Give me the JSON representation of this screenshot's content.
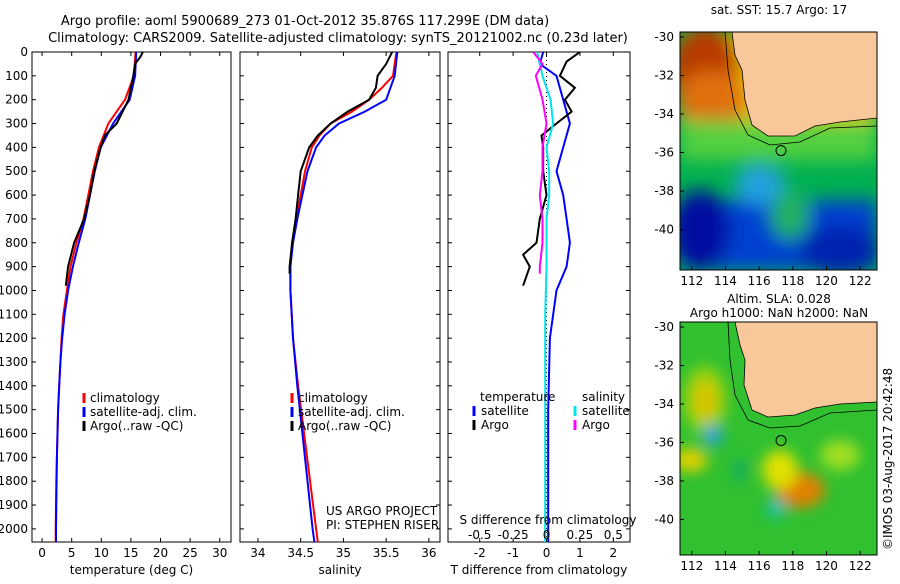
{
  "title": {
    "line1": "Argo profile: aoml 5900689_273 01-Oct-2012 35.876S 117.299E (DM data)",
    "line2": "Climatology: CARS2009. Satellite-adjusted climatology: synTS_20121002.nc (0.23d later)"
  },
  "colors": {
    "climatology": "#ff0000",
    "satellite": "#0000ff",
    "argo": "#000000",
    "sal_satellite": "#00e5ee",
    "sal_argo": "#ff00ff",
    "land": "#f9c89a"
  },
  "chart_data": [
    {
      "type": "line",
      "id": "temperature",
      "xlabel": "temperature (deg C)",
      "ylabel": "",
      "xlim": [
        -1.7,
        31.9
      ],
      "ylim": [
        2055,
        0
      ],
      "xticks": [
        0,
        5,
        10,
        15,
        20,
        25,
        30
      ],
      "yticks": [
        0,
        100,
        200,
        300,
        400,
        500,
        600,
        700,
        800,
        900,
        1000,
        1100,
        1200,
        1300,
        1400,
        1500,
        1600,
        1700,
        1800,
        1900,
        2000
      ],
      "legend": {
        "position": "bottom-center",
        "entries": [
          "climatology",
          "satellite-adj. clim.",
          "Argo(..raw -QC)"
        ]
      },
      "series": [
        {
          "name": "climatology",
          "color": "#ff0000",
          "points": [
            [
              15.8,
              0
            ],
            [
              15.5,
              100
            ],
            [
              14,
              200
            ],
            [
              11.2,
              300
            ],
            [
              9.6,
              400
            ],
            [
              8.6,
              500
            ],
            [
              7.8,
              600
            ],
            [
              7,
              700
            ],
            [
              5.8,
              800
            ],
            [
              4.8,
              900
            ],
            [
              4.2,
              1000
            ],
            [
              3.6,
              1100
            ],
            [
              3.3,
              1200
            ],
            [
              3.1,
              1300
            ],
            [
              2.9,
              1400
            ],
            [
              2.7,
              1500
            ],
            [
              2.6,
              1600
            ],
            [
              2.5,
              1700
            ],
            [
              2.4,
              1800
            ],
            [
              2.35,
              1900
            ],
            [
              2.3,
              2000
            ],
            [
              2.3,
              2055
            ]
          ]
        },
        {
          "name": "satellite-adj. clim.",
          "color": "#0000ff",
          "points": [
            [
              15.9,
              0
            ],
            [
              15.7,
              100
            ],
            [
              14.8,
              200
            ],
            [
              12,
              300
            ],
            [
              9.9,
              400
            ],
            [
              8.9,
              500
            ],
            [
              8.1,
              600
            ],
            [
              7.3,
              700
            ],
            [
              6.2,
              800
            ],
            [
              5.2,
              900
            ],
            [
              4.4,
              1000
            ],
            [
              3.8,
              1100
            ],
            [
              3.4,
              1200
            ],
            [
              3.1,
              1300
            ],
            [
              2.9,
              1400
            ],
            [
              2.7,
              1500
            ],
            [
              2.6,
              1600
            ],
            [
              2.5,
              1700
            ],
            [
              2.45,
              1800
            ],
            [
              2.4,
              1900
            ],
            [
              2.35,
              2000
            ],
            [
              2.35,
              2055
            ]
          ]
        },
        {
          "name": "Argo(..raw -QC)",
          "color": "#000000",
          "points": [
            [
              17,
              0
            ],
            [
              16.6,
              20
            ],
            [
              15.7,
              50
            ],
            [
              15.4,
              100
            ],
            [
              14.6,
              200
            ],
            [
              12.6,
              300
            ],
            [
              10.6,
              350
            ],
            [
              9.9,
              400
            ],
            [
              8.8,
              500
            ],
            [
              8.1,
              600
            ],
            [
              7.1,
              700
            ],
            [
              5.4,
              800
            ],
            [
              4.4,
              900
            ],
            [
              4,
              980
            ]
          ]
        }
      ],
      "annotation": ""
    },
    {
      "type": "line",
      "id": "salinity",
      "xlabel": "salinity",
      "xlim": [
        33.79,
        36.13
      ],
      "ylim": [
        2055,
        0
      ],
      "xticks": [
        34,
        34.5,
        35,
        35.5,
        36
      ],
      "legend": {
        "position": "bottom-center",
        "entries": [
          "climatology",
          "satellite-adj. clim.",
          "Argo(..raw -QC)"
        ]
      },
      "series": [
        {
          "name": "climatology",
          "color": "#ff0000",
          "points": [
            [
              35.62,
              0
            ],
            [
              35.58,
              100
            ],
            [
              35.45,
              150
            ],
            [
              35.3,
              200
            ],
            [
              35.1,
              250
            ],
            [
              34.85,
              300
            ],
            [
              34.72,
              350
            ],
            [
              34.63,
              400
            ],
            [
              34.55,
              500
            ],
            [
              34.5,
              600
            ],
            [
              34.45,
              700
            ],
            [
              34.4,
              800
            ],
            [
              34.38,
              900
            ],
            [
              34.38,
              1000
            ],
            [
              34.41,
              1200
            ],
            [
              34.47,
              1400
            ],
            [
              34.54,
              1600
            ],
            [
              34.61,
              1800
            ],
            [
              34.68,
              2000
            ],
            [
              34.7,
              2055
            ]
          ]
        },
        {
          "name": "satellite-adj. clim.",
          "color": "#0000ff",
          "points": [
            [
              35.63,
              0
            ],
            [
              35.6,
              100
            ],
            [
              35.5,
              200
            ],
            [
              35.25,
              250
            ],
            [
              34.95,
              300
            ],
            [
              34.78,
              350
            ],
            [
              34.68,
              400
            ],
            [
              34.58,
              500
            ],
            [
              34.52,
              600
            ],
            [
              34.46,
              700
            ],
            [
              34.41,
              800
            ],
            [
              34.38,
              900
            ],
            [
              34.38,
              1000
            ],
            [
              34.41,
              1200
            ],
            [
              34.46,
              1400
            ],
            [
              34.52,
              1600
            ],
            [
              34.58,
              1800
            ],
            [
              34.64,
              2000
            ],
            [
              34.66,
              2055
            ]
          ]
        },
        {
          "name": "Argo(..raw -QC)",
          "color": "#000000",
          "points": [
            [
              35.57,
              0
            ],
            [
              35.5,
              50
            ],
            [
              35.4,
              100
            ],
            [
              35.38,
              150
            ],
            [
              35.3,
              200
            ],
            [
              35.05,
              250
            ],
            [
              34.85,
              300
            ],
            [
              34.7,
              350
            ],
            [
              34.6,
              400
            ],
            [
              34.5,
              500
            ],
            [
              34.47,
              600
            ],
            [
              34.44,
              700
            ],
            [
              34.4,
              800
            ],
            [
              34.37,
              900
            ],
            [
              34.37,
              930
            ]
          ]
        }
      ],
      "annotation": [
        "US ARGO PROJECT",
        "PI: STEPHEN RISER"
      ]
    },
    {
      "type": "line",
      "id": "difference",
      "xlabel": "T difference from climatology",
      "x2label": "S difference from climatology",
      "xlim": [
        -2.95,
        2.5
      ],
      "ylim": [
        2055,
        0
      ],
      "xticks": [
        -2,
        -1,
        0,
        1,
        2
      ],
      "x2ticks": [
        -0.5,
        -0.25,
        0,
        0.25,
        0.5
      ],
      "x2ticklabels": [
        "-0.5",
        "-0.25",
        "0",
        "0.25",
        "0.5"
      ],
      "legend": {
        "position": "bottom",
        "temperature_header": "temperature",
        "salinity_header": "salinity",
        "entries": [
          "satellite",
          "Argo",
          "satellite",
          "Argo"
        ]
      },
      "series": [
        {
          "name": "temperature satellite",
          "color": "#0000ff",
          "scale": 1,
          "points": [
            [
              -0.1,
              0
            ],
            [
              -0.2,
              50
            ],
            [
              0.3,
              100
            ],
            [
              0.5,
              200
            ],
            [
              0.7,
              300
            ],
            [
              0.5,
              400
            ],
            [
              0.3,
              500
            ],
            [
              0.5,
              600
            ],
            [
              0.6,
              700
            ],
            [
              0.7,
              800
            ],
            [
              0.6,
              900
            ],
            [
              0.3,
              1000
            ],
            [
              0.1,
              1200
            ],
            [
              0.05,
              1500
            ],
            [
              0.05,
              2055
            ]
          ]
        },
        {
          "name": "temperature Argo",
          "color": "#000000",
          "scale": 1,
          "points": [
            [
              1.0,
              0
            ],
            [
              0.6,
              40
            ],
            [
              0.4,
              100
            ],
            [
              0.85,
              150
            ],
            [
              0.55,
              200
            ],
            [
              0.75,
              250
            ],
            [
              0.3,
              300
            ],
            [
              -0.15,
              350
            ],
            [
              -0.1,
              400
            ],
            [
              -0.1,
              500
            ],
            [
              0,
              600
            ],
            [
              -0.2,
              700
            ],
            [
              -0.3,
              800
            ],
            [
              -0.7,
              850
            ],
            [
              -0.5,
              900
            ],
            [
              -0.7,
              980
            ]
          ]
        },
        {
          "name": "salinity satellite",
          "color": "#00e5ee",
          "scale": 4,
          "points": [
            [
              -0.07,
              0
            ],
            [
              -0.03,
              100
            ],
            [
              0.03,
              200
            ],
            [
              0.05,
              300
            ],
            [
              0,
              400
            ],
            [
              0.02,
              500
            ],
            [
              0.02,
              600
            ],
            [
              0,
              700
            ],
            [
              0,
              900
            ],
            [
              -0.01,
              1100
            ],
            [
              -0.01,
              2055
            ]
          ]
        },
        {
          "name": "salinity Argo",
          "color": "#ff00ff",
          "scale": 4,
          "points": [
            [
              -0.1,
              0
            ],
            [
              -0.03,
              50
            ],
            [
              -0.08,
              100
            ],
            [
              -0.03,
              200
            ],
            [
              0,
              300
            ],
            [
              -0.03,
              400
            ],
            [
              -0.03,
              500
            ],
            [
              -0.05,
              600
            ],
            [
              -0.03,
              700
            ],
            [
              -0.03,
              800
            ],
            [
              -0.05,
              900
            ],
            [
              -0.05,
              930
            ]
          ]
        }
      ]
    }
  ],
  "maps": [
    {
      "title": "sat. SST: 15.7 Argo: 17",
      "xticks": [
        112,
        114,
        116,
        118,
        120,
        122
      ],
      "yticks": [
        -30,
        -32,
        -34,
        -36,
        -38,
        -40
      ],
      "marker": {
        "lon": 117.3,
        "lat": -35.9
      }
    },
    {
      "title_line1": "Altim. SLA: 0.028",
      "title_line2": "Argo h1000: NaN h2000: NaN",
      "xticks": [
        112,
        114,
        116,
        118,
        120,
        122
      ],
      "yticks": [
        -30,
        -32,
        -34,
        -36,
        -38,
        -40
      ],
      "marker": {
        "lon": 117.3,
        "lat": -35.9
      }
    }
  ],
  "credit": "©IMOS 03-Aug-2017 20:42:48"
}
